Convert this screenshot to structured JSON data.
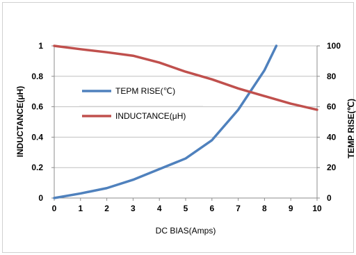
{
  "chart_data": {
    "type": "line",
    "xlabel": "DC BIAS(Amps)",
    "ylabel": "INDUCTANCE(μH)",
    "y2label": "TEMP RISE(℃)",
    "x": [
      0,
      1,
      2,
      3,
      4,
      5,
      6,
      7,
      8,
      9,
      10
    ],
    "xlim": [
      0,
      10
    ],
    "ylim": [
      0,
      1
    ],
    "y2lim": [
      0,
      100
    ],
    "x_ticks": [
      "0",
      "1",
      "2",
      "3",
      "4",
      "5",
      "6",
      "7",
      "8",
      "9",
      "10"
    ],
    "y_ticks": [
      "0",
      "0.2",
      "0.4",
      "0.6",
      "0.8",
      "1"
    ],
    "y2_ticks": [
      "0",
      "20",
      "40",
      "60",
      "80",
      "100"
    ],
    "grid": "horizontal",
    "legend_position": "center-left",
    "series": [
      {
        "name": "TEPM RISE(℃)",
        "axis": "right",
        "color": "#4f81bd",
        "x": [
          0,
          1,
          2,
          3,
          4,
          5,
          6,
          7,
          8,
          8.45
        ],
        "values": [
          0,
          3,
          6.5,
          12,
          19,
          26,
          38,
          58,
          84,
          100
        ]
      },
      {
        "name": "INDUCTANCE(μH)",
        "axis": "left",
        "color": "#c0504d",
        "x": [
          0,
          1,
          2,
          3,
          4,
          5,
          6,
          7,
          8,
          9,
          10
        ],
        "values": [
          1.0,
          0.978,
          0.958,
          0.935,
          0.89,
          0.83,
          0.78,
          0.72,
          0.67,
          0.62,
          0.58
        ]
      }
    ]
  }
}
